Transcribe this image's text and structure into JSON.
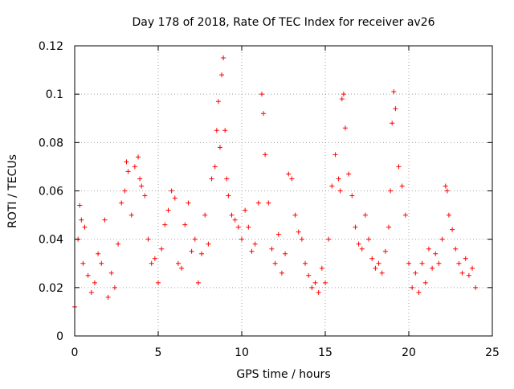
{
  "chart_data": {
    "type": "scatter",
    "title": "Day 178 of 2018, Rate Of TEC Index for receiver av26",
    "xlabel": "GPS time / hours",
    "ylabel": "ROTI / TECUs",
    "xlim": [
      0,
      25
    ],
    "ylim": [
      0,
      0.12
    ],
    "x_ticks": [
      0,
      5,
      10,
      15,
      20,
      25
    ],
    "x_tick_labels": [
      "0",
      "5",
      "10",
      "15",
      "20",
      "25"
    ],
    "y_ticks": [
      0,
      0.02,
      0.04,
      0.06,
      0.08,
      0.1,
      0.12
    ],
    "y_tick_labels": [
      "0",
      "0.02",
      "0.04",
      "0.06",
      "0.08",
      "0.1",
      "0.12"
    ],
    "grid": true,
    "marker": "plus",
    "color": "#ff0000",
    "series": [
      {
        "name": "ROTI",
        "x": [
          0.0,
          0.2,
          0.3,
          0.4,
          0.5,
          0.6,
          0.8,
          1.0,
          1.2,
          1.4,
          1.6,
          1.8,
          2.0,
          2.2,
          2.4,
          2.6,
          2.8,
          3.0,
          3.1,
          3.2,
          3.4,
          3.6,
          3.8,
          3.9,
          4.0,
          4.2,
          4.4,
          4.6,
          4.8,
          5.0,
          5.2,
          5.4,
          5.6,
          5.8,
          6.0,
          6.2,
          6.4,
          6.6,
          6.8,
          7.0,
          7.2,
          7.4,
          7.6,
          7.8,
          8.0,
          8.2,
          8.4,
          8.5,
          8.6,
          8.7,
          8.8,
          8.9,
          9.0,
          9.1,
          9.2,
          9.4,
          9.6,
          9.8,
          10.0,
          10.2,
          10.4,
          10.6,
          10.8,
          11.0,
          11.2,
          11.3,
          11.4,
          11.6,
          11.8,
          12.0,
          12.2,
          12.4,
          12.6,
          12.8,
          13.0,
          13.2,
          13.4,
          13.6,
          13.8,
          14.0,
          14.2,
          14.4,
          14.6,
          14.8,
          15.0,
          15.2,
          15.4,
          15.6,
          15.8,
          15.9,
          16.0,
          16.1,
          16.2,
          16.4,
          16.6,
          16.8,
          17.0,
          17.2,
          17.4,
          17.6,
          17.8,
          18.0,
          18.2,
          18.4,
          18.6,
          18.8,
          18.9,
          19.0,
          19.1,
          19.2,
          19.4,
          19.6,
          19.8,
          20.0,
          20.2,
          20.4,
          20.6,
          20.8,
          21.0,
          21.2,
          21.4,
          21.6,
          21.8,
          22.0,
          22.2,
          22.3,
          22.4,
          22.6,
          22.8,
          23.0,
          23.2,
          23.4,
          23.6,
          23.8,
          24.0
        ],
        "y": [
          0.012,
          0.04,
          0.054,
          0.048,
          0.03,
          0.045,
          0.025,
          0.018,
          0.022,
          0.034,
          0.03,
          0.048,
          0.016,
          0.026,
          0.02,
          0.038,
          0.055,
          0.06,
          0.072,
          0.068,
          0.05,
          0.07,
          0.074,
          0.065,
          0.062,
          0.058,
          0.04,
          0.03,
          0.032,
          0.022,
          0.036,
          0.046,
          0.052,
          0.06,
          0.057,
          0.03,
          0.028,
          0.046,
          0.055,
          0.035,
          0.04,
          0.022,
          0.034,
          0.05,
          0.038,
          0.065,
          0.07,
          0.085,
          0.097,
          0.078,
          0.108,
          0.115,
          0.085,
          0.065,
          0.058,
          0.05,
          0.048,
          0.045,
          0.04,
          0.052,
          0.045,
          0.035,
          0.038,
          0.055,
          0.1,
          0.092,
          0.075,
          0.055,
          0.036,
          0.03,
          0.042,
          0.026,
          0.034,
          0.067,
          0.065,
          0.05,
          0.043,
          0.04,
          0.03,
          0.025,
          0.02,
          0.022,
          0.018,
          0.028,
          0.022,
          0.04,
          0.062,
          0.075,
          0.065,
          0.06,
          0.098,
          0.1,
          0.086,
          0.067,
          0.058,
          0.045,
          0.038,
          0.036,
          0.05,
          0.04,
          0.032,
          0.028,
          0.03,
          0.026,
          0.035,
          0.045,
          0.06,
          0.088,
          0.101,
          0.094,
          0.07,
          0.062,
          0.05,
          0.03,
          0.02,
          0.026,
          0.018,
          0.03,
          0.022,
          0.036,
          0.028,
          0.034,
          0.03,
          0.04,
          0.062,
          0.06,
          0.05,
          0.044,
          0.036,
          0.03,
          0.026,
          0.032,
          0.025,
          0.028,
          0.02
        ]
      }
    ]
  }
}
